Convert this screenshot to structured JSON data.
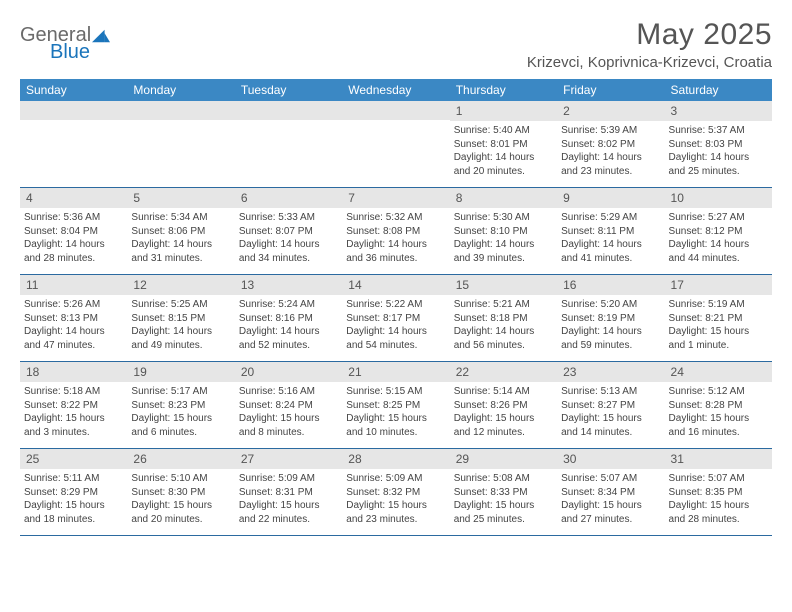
{
  "logo": {
    "part1": "General",
    "part2": "Blue",
    "icon_color": "#1b75bb"
  },
  "title": "May 2025",
  "location": "Krizevci, Koprivnica-Krizevci, Croatia",
  "header_bg": "#3b88c4",
  "weekdays": [
    "Sunday",
    "Monday",
    "Tuesday",
    "Wednesday",
    "Thursday",
    "Friday",
    "Saturday"
  ],
  "weeks": [
    [
      null,
      null,
      null,
      null,
      {
        "n": "1",
        "sr": "5:40 AM",
        "ss": "8:01 PM",
        "dl": "14 hours and 20 minutes."
      },
      {
        "n": "2",
        "sr": "5:39 AM",
        "ss": "8:02 PM",
        "dl": "14 hours and 23 minutes."
      },
      {
        "n": "3",
        "sr": "5:37 AM",
        "ss": "8:03 PM",
        "dl": "14 hours and 25 minutes."
      }
    ],
    [
      {
        "n": "4",
        "sr": "5:36 AM",
        "ss": "8:04 PM",
        "dl": "14 hours and 28 minutes."
      },
      {
        "n": "5",
        "sr": "5:34 AM",
        "ss": "8:06 PM",
        "dl": "14 hours and 31 minutes."
      },
      {
        "n": "6",
        "sr": "5:33 AM",
        "ss": "8:07 PM",
        "dl": "14 hours and 34 minutes."
      },
      {
        "n": "7",
        "sr": "5:32 AM",
        "ss": "8:08 PM",
        "dl": "14 hours and 36 minutes."
      },
      {
        "n": "8",
        "sr": "5:30 AM",
        "ss": "8:10 PM",
        "dl": "14 hours and 39 minutes."
      },
      {
        "n": "9",
        "sr": "5:29 AM",
        "ss": "8:11 PM",
        "dl": "14 hours and 41 minutes."
      },
      {
        "n": "10",
        "sr": "5:27 AM",
        "ss": "8:12 PM",
        "dl": "14 hours and 44 minutes."
      }
    ],
    [
      {
        "n": "11",
        "sr": "5:26 AM",
        "ss": "8:13 PM",
        "dl": "14 hours and 47 minutes."
      },
      {
        "n": "12",
        "sr": "5:25 AM",
        "ss": "8:15 PM",
        "dl": "14 hours and 49 minutes."
      },
      {
        "n": "13",
        "sr": "5:24 AM",
        "ss": "8:16 PM",
        "dl": "14 hours and 52 minutes."
      },
      {
        "n": "14",
        "sr": "5:22 AM",
        "ss": "8:17 PM",
        "dl": "14 hours and 54 minutes."
      },
      {
        "n": "15",
        "sr": "5:21 AM",
        "ss": "8:18 PM",
        "dl": "14 hours and 56 minutes."
      },
      {
        "n": "16",
        "sr": "5:20 AM",
        "ss": "8:19 PM",
        "dl": "14 hours and 59 minutes."
      },
      {
        "n": "17",
        "sr": "5:19 AM",
        "ss": "8:21 PM",
        "dl": "15 hours and 1 minute."
      }
    ],
    [
      {
        "n": "18",
        "sr": "5:18 AM",
        "ss": "8:22 PM",
        "dl": "15 hours and 3 minutes."
      },
      {
        "n": "19",
        "sr": "5:17 AM",
        "ss": "8:23 PM",
        "dl": "15 hours and 6 minutes."
      },
      {
        "n": "20",
        "sr": "5:16 AM",
        "ss": "8:24 PM",
        "dl": "15 hours and 8 minutes."
      },
      {
        "n": "21",
        "sr": "5:15 AM",
        "ss": "8:25 PM",
        "dl": "15 hours and 10 minutes."
      },
      {
        "n": "22",
        "sr": "5:14 AM",
        "ss": "8:26 PM",
        "dl": "15 hours and 12 minutes."
      },
      {
        "n": "23",
        "sr": "5:13 AM",
        "ss": "8:27 PM",
        "dl": "15 hours and 14 minutes."
      },
      {
        "n": "24",
        "sr": "5:12 AM",
        "ss": "8:28 PM",
        "dl": "15 hours and 16 minutes."
      }
    ],
    [
      {
        "n": "25",
        "sr": "5:11 AM",
        "ss": "8:29 PM",
        "dl": "15 hours and 18 minutes."
      },
      {
        "n": "26",
        "sr": "5:10 AM",
        "ss": "8:30 PM",
        "dl": "15 hours and 20 minutes."
      },
      {
        "n": "27",
        "sr": "5:09 AM",
        "ss": "8:31 PM",
        "dl": "15 hours and 22 minutes."
      },
      {
        "n": "28",
        "sr": "5:09 AM",
        "ss": "8:32 PM",
        "dl": "15 hours and 23 minutes."
      },
      {
        "n": "29",
        "sr": "5:08 AM",
        "ss": "8:33 PM",
        "dl": "15 hours and 25 minutes."
      },
      {
        "n": "30",
        "sr": "5:07 AM",
        "ss": "8:34 PM",
        "dl": "15 hours and 27 minutes."
      },
      {
        "n": "31",
        "sr": "5:07 AM",
        "ss": "8:35 PM",
        "dl": "15 hours and 28 minutes."
      }
    ]
  ],
  "labels": {
    "sunrise": "Sunrise:",
    "sunset": "Sunset:",
    "daylight": "Daylight:"
  }
}
